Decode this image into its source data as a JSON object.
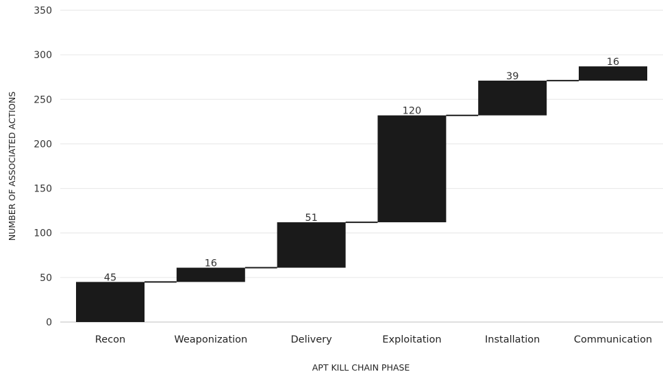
{
  "chart_data": {
    "type": "bar",
    "subtype": "waterfall",
    "title": "",
    "xlabel": "APT KILL CHAIN PHASE",
    "ylabel": "NUMBER OF ASSOCIATED ACTIONS",
    "categories": [
      "Recon",
      "Weaponization",
      "Delivery",
      "Exploitation",
      "Installation",
      "Communication"
    ],
    "values": [
      45,
      16,
      51,
      120,
      39,
      16
    ],
    "data_labels": [
      "45",
      "16",
      "51",
      "120",
      "39",
      "16"
    ],
    "ylim": [
      0,
      350
    ],
    "yticks": [
      0,
      50,
      100,
      150,
      200,
      250,
      300,
      350
    ],
    "ytick_labels": [
      "0",
      "50",
      "100",
      "150",
      "200",
      "250",
      "300",
      "350"
    ],
    "grid": true,
    "legend": "none",
    "colors": {
      "bar": "#1a1a1a",
      "connector": "#1a1a1a",
      "grid": "#e6e6e6",
      "baseline": "#bfbfbf"
    }
  }
}
